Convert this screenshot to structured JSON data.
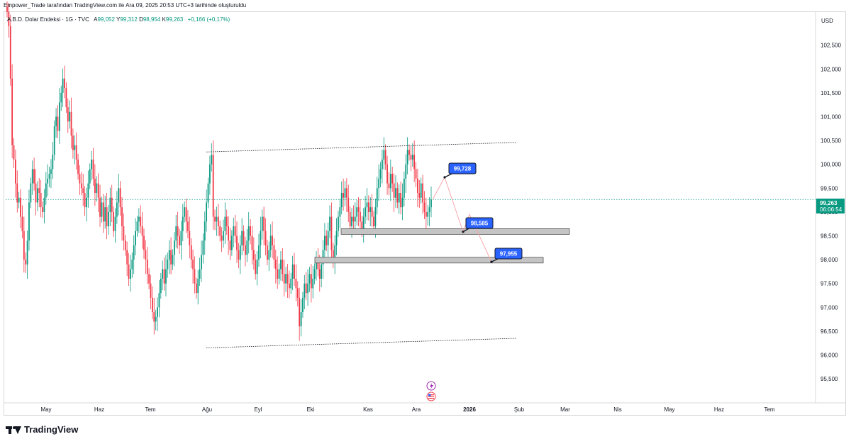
{
  "header": {
    "caption": "Empower_Trade tarafından TradingView.com ile Ara 09, 2025 20:53 UTC+3 tarihinde oluşturuldu"
  },
  "legend": {
    "symbol": "A.B.D. Dolar Endeksi · 1G · TVC",
    "open_label": "A",
    "open": "99,052",
    "high_label": "Y",
    "high": "99,312",
    "low_label": "D",
    "low": "98,954",
    "close_label": "K",
    "close": "99,263",
    "change": "+0,166 (+0,17%)"
  },
  "colors": {
    "up": "#089981",
    "down": "#f23645",
    "last_price_bg": "#089981",
    "callout_bg": "#2962ff",
    "zone_fill": "#c4c4c4",
    "projection_line": "#f7a1a8"
  },
  "chart_data": {
    "type": "candlestick",
    "currency": "USD",
    "y_ticks": [
      "102,500",
      "102,000",
      "101,500",
      "101,000",
      "100,500",
      "100,000",
      "99,500",
      "99,000",
      "98,500",
      "98,000",
      "97,500",
      "97,000",
      "96,500",
      "96,000",
      "95,500"
    ],
    "y_tick_values": [
      102.5,
      102.0,
      101.5,
      101.0,
      100.5,
      100.0,
      99.5,
      99.0,
      98.5,
      98.0,
      97.5,
      97.0,
      96.5,
      96.0,
      95.5
    ],
    "x_ticks": [
      "May",
      "Haz",
      "Tem",
      "Ağu",
      "Eyl",
      "Eki",
      "Kas",
      "Ara",
      "2026",
      "Şub",
      "Mar",
      "Nis",
      "May",
      "Haz",
      "Tem"
    ],
    "last_price": "99,263",
    "countdown": "06:06:54",
    "annotations": [
      {
        "label": "99,728",
        "value": 99.728
      },
      {
        "label": "98,585",
        "value": 98.585
      },
      {
        "label": "97,955",
        "value": 97.955
      }
    ],
    "support_zones": [
      {
        "top": 98.65,
        "bottom": 98.53
      },
      {
        "top": 98.05,
        "bottom": 97.93
      }
    ],
    "channel": {
      "upper": {
        "from": 100.26,
        "to": 100.46
      },
      "lower": {
        "from": 96.15,
        "to": 96.35
      }
    },
    "closes": [
      103.2,
      102.9,
      101.8,
      100.4,
      100.1,
      99.6,
      99.2,
      99.3,
      98.9,
      98.6,
      98.0,
      97.9,
      98.4,
      99.2,
      99.6,
      99.9,
      99.6,
      99.2,
      99.5,
      99.4,
      99.1,
      99.0,
      99.3,
      99.6,
      99.7,
      99.8,
      99.9,
      100.2,
      100.8,
      101.0,
      100.7,
      101.3,
      101.5,
      101.8,
      101.6,
      101.2,
      100.9,
      101.1,
      100.6,
      100.3,
      100.4,
      100.1,
      99.8,
      99.6,
      99.5,
      99.4,
      99.1,
      99.3,
      99.6,
      99.9,
      100.1,
      99.7,
      99.4,
      99.6,
      99.3,
      98.9,
      99.2,
      98.8,
      99.1,
      98.7,
      99.0,
      99.3,
      99.0,
      98.6,
      98.9,
      99.2,
      99.5,
      99.1,
      98.7,
      98.4,
      98.2,
      97.9,
      97.6,
      97.8,
      98.0,
      98.3,
      98.6,
      98.8,
      98.9,
      98.7,
      98.5,
      98.2,
      98.0,
      97.7,
      97.5,
      97.2,
      96.9,
      96.7,
      96.8,
      97.0,
      97.3,
      97.6,
      97.8,
      97.5,
      97.8,
      98.0,
      98.2,
      97.9,
      98.1,
      98.4,
      98.7,
      98.5,
      98.3,
      98.6,
      98.9,
      99.1,
      98.8,
      98.6,
      98.3,
      98.0,
      97.8,
      97.5,
      97.3,
      97.6,
      97.8,
      98.1,
      98.4,
      98.8,
      99.2,
      99.6,
      100.0,
      100.2,
      98.9,
      98.8,
      98.9,
      98.7,
      98.5,
      98.4,
      98.6,
      98.9,
      98.7,
      98.4,
      98.2,
      98.5,
      98.7,
      98.5,
      98.2,
      98.0,
      98.3,
      98.6,
      98.3,
      98.1,
      98.4,
      98.7,
      98.5,
      98.2,
      98.0,
      97.7,
      98.0,
      98.3,
      98.6,
      98.9,
      98.6,
      98.3,
      98.0,
      98.2,
      98.5,
      98.3,
      98.0,
      97.8,
      97.6,
      97.8,
      98.0,
      97.7,
      97.5,
      97.7,
      97.5,
      97.4,
      97.6,
      97.9,
      97.6,
      97.4,
      97.2,
      96.6,
      96.9,
      97.2,
      97.5,
      97.3,
      97.5,
      97.7,
      97.4,
      97.6,
      97.8,
      98.0,
      97.8,
      97.6,
      97.9,
      98.2,
      98.5,
      98.3,
      98.6,
      98.9,
      98.2,
      98.0,
      98.3,
      98.6,
      98.9,
      99.1,
      99.4,
      99.3,
      99.5,
      99.3,
      99.0,
      98.7,
      98.9,
      98.8,
      98.9,
      99.1,
      99.0,
      98.8,
      98.6,
      98.9,
      99.1,
      99.2,
      99.0,
      99.1,
      98.9,
      98.7,
      99.1,
      99.5,
      99.7,
      99.9,
      100.1,
      100.3,
      100.0,
      99.6,
      99.5,
      99.8,
      99.6,
      99.3,
      99.5,
      99.2,
      99.4,
      99.1,
      99.3,
      99.7,
      100.0,
      100.3,
      100.2,
      100.1,
      100.2,
      99.9,
      99.7,
      99.4,
      99.3,
      99.6,
      99.2,
      99.0,
      98.9,
      99.0,
      99.1,
      99.263
    ]
  }
}
